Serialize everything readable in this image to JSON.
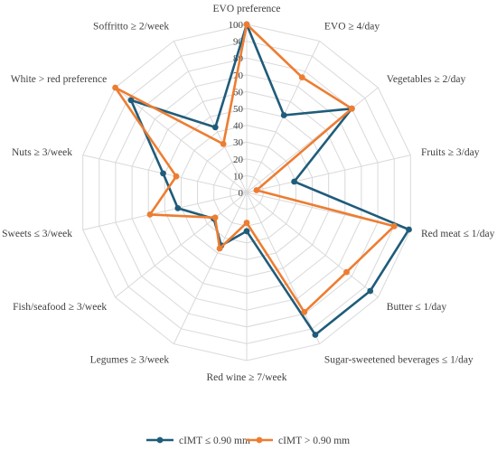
{
  "chart_data": {
    "type": "radar",
    "title": "",
    "categories": [
      "EVO preference",
      "EVO ≥ 4/day",
      "Vegetables ≥ 2/day",
      "Fruits ≥ 3/day",
      "Red meat ≤ 1/day",
      "Butter ≤ 1/day",
      "Sugar-sweetened beverages ≤ 1/day",
      "Red wine ≥ 7/week",
      "Legumes ≥ 3/week",
      "Fish/seafood ≥ 3/week",
      "Sweets ≤ 3/week",
      "Nuts ≥ 3/week",
      "White > red preference",
      "Soffritto ≥ 2/week"
    ],
    "ticks": [
      "0",
      "10",
      "20",
      "30",
      "40",
      "50",
      "60",
      "70",
      "80",
      "90",
      "100"
    ],
    "rlim": [
      0,
      100
    ],
    "grid": true,
    "legend_position": "bottom",
    "series": [
      {
        "name": "cIMT ≤ 0.90 mm",
        "color": "#1f5c7a",
        "values": [
          100,
          51,
          80,
          29,
          99,
          94,
          94,
          23,
          35,
          25,
          42,
          51,
          88,
          43
        ]
      },
      {
        "name": "cIMT > 0.90 mm",
        "color": "#ed7d31",
        "values": [
          100,
          76,
          80,
          6,
          90,
          76,
          79,
          18,
          37,
          24,
          59,
          43,
          100,
          32
        ]
      }
    ]
  }
}
